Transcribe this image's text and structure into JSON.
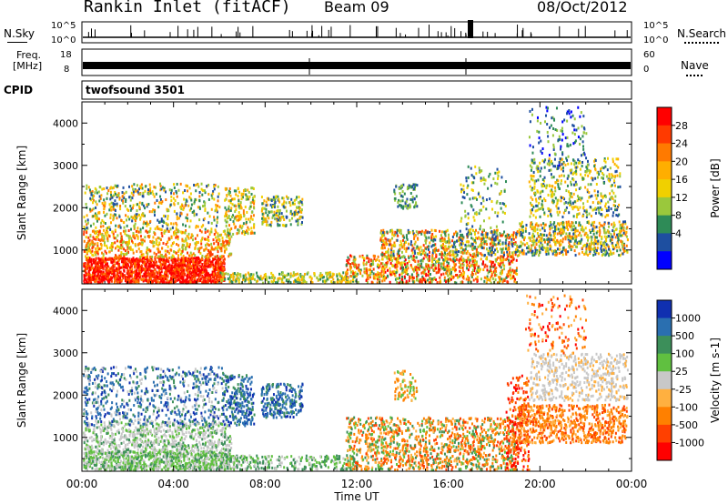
{
  "header": {
    "station": "Rankin Inlet (fitACF)",
    "beam": "Beam 09",
    "date": "08/Oct/2012"
  },
  "top_panels": {
    "nsky": {
      "label": "N.Sky",
      "left_ticks": [
        "10^5",
        "10^0"
      ],
      "right_label": "N.Search",
      "right_ticks": [
        "10^5",
        "10^0"
      ]
    },
    "freq": {
      "label_line1": "Freq.",
      "label_line2": "[MHz]",
      "left_ticks": [
        "18",
        "8"
      ],
      "right_label": "Nave",
      "right_ticks": [
        "60",
        "0"
      ]
    },
    "cpid": {
      "label": "CPID",
      "value": "twofsound 3501"
    }
  },
  "chart_data": [
    {
      "type": "heatmap",
      "name": "power",
      "ylabel": "Slant Range [km]",
      "xlabel": "",
      "xlim_hours": [
        0,
        24
      ],
      "ylim_km": [
        200,
        4500
      ],
      "yticks": [
        "1000",
        "2000",
        "3000",
        "4000"
      ],
      "colorbar": {
        "label": "Power [dB]",
        "ticks": [
          "28",
          "24",
          "20",
          "16",
          "12",
          "8",
          "4"
        ],
        "colors": [
          "#ff0000",
          "#ff3a00",
          "#ff7a00",
          "#ffae00",
          "#f0d000",
          "#9ac83c",
          "#2e8b57",
          "#1e4fa0",
          "#0000ff"
        ]
      }
    },
    {
      "type": "heatmap",
      "name": "velocity",
      "ylabel": "Slant Range [km]",
      "xlabel": "Time UT",
      "xlim_hours": [
        0,
        24
      ],
      "ylim_km": [
        200,
        4500
      ],
      "yticks": [
        "1000",
        "2000",
        "3000",
        "4000"
      ],
      "xticks": [
        "00:00",
        "04:00",
        "08:00",
        "12:00",
        "16:00",
        "20:00",
        "00:00"
      ],
      "colorbar": {
        "label": "Velocity [m s-1]",
        "ticks": [
          "1000",
          "500",
          "100",
          "25",
          "-25",
          "-100",
          "-500",
          "-1000"
        ],
        "colors": [
          "#1030b0",
          "#2a6fb0",
          "#3c8f5a",
          "#60c040",
          "#c8c8c8",
          "#ffb040",
          "#ff8000",
          "#ff4000",
          "#ff0000"
        ]
      }
    }
  ]
}
